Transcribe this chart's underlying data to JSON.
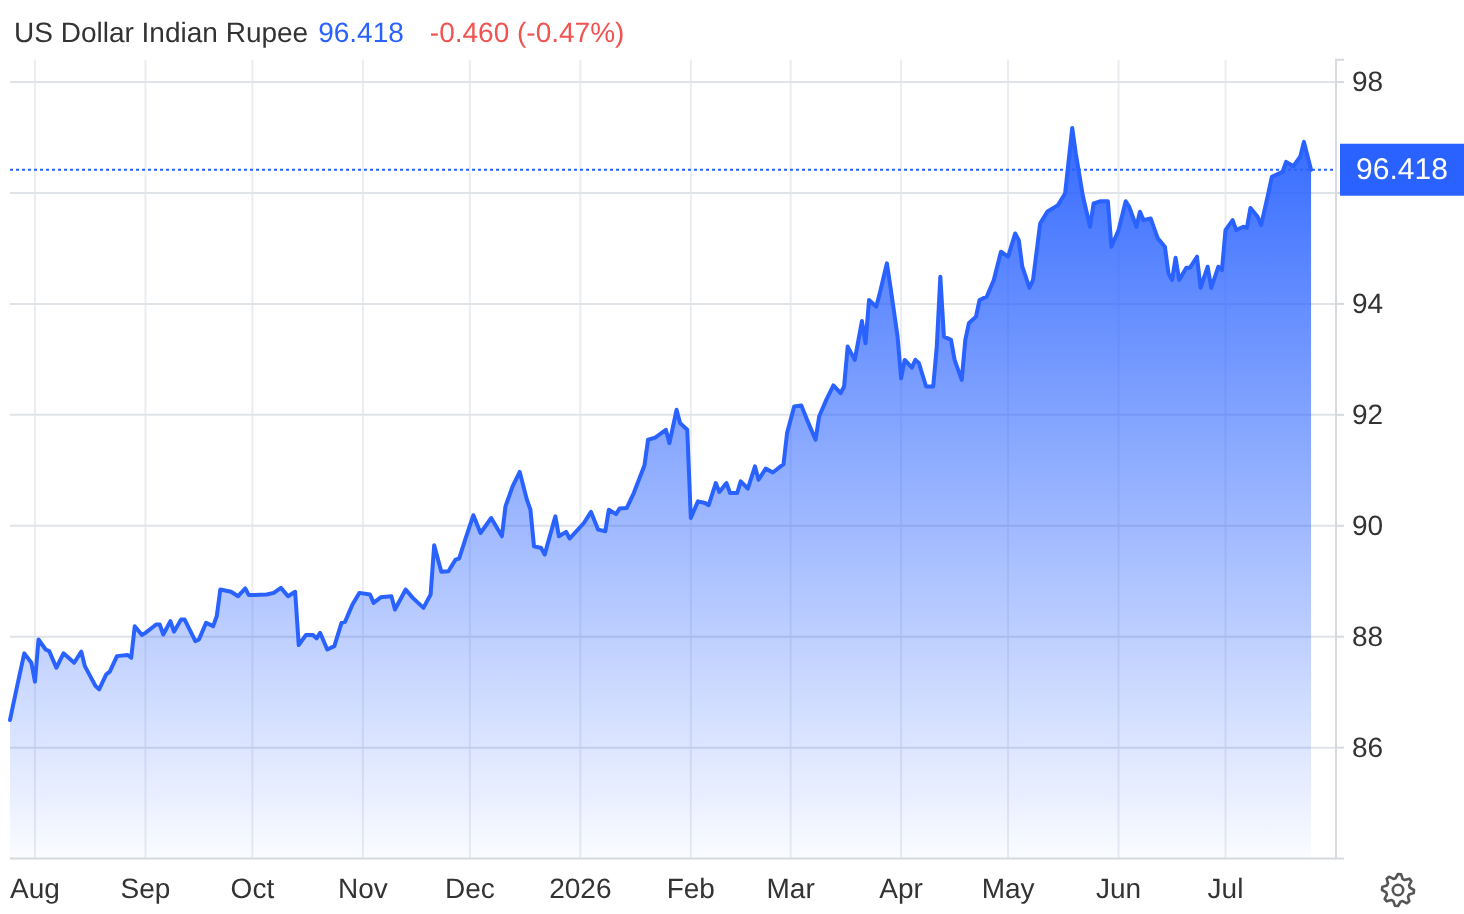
{
  "chart_data": {
    "type": "area",
    "title": "US Dollar Indian Rupee",
    "annotations": [
      "96.418",
      "-0.460 (-0.47%)"
    ],
    "x": [
      "2025-07-25",
      "2025-07-27",
      "2025-07-29",
      "2025-07-31",
      "2025-08-01",
      "2025-08-02",
      "2025-08-04",
      "2025-08-05",
      "2025-08-07",
      "2025-08-09",
      "2025-08-12",
      "2025-08-14",
      "2025-08-15",
      "2025-08-18",
      "2025-08-19",
      "2025-08-21",
      "2025-08-22",
      "2025-08-24",
      "2025-08-27",
      "2025-08-28",
      "2025-08-29",
      "2025-08-31",
      "2025-09-01",
      "2025-09-04",
      "2025-09-05",
      "2025-09-06",
      "2025-09-08",
      "2025-09-09",
      "2025-09-11",
      "2025-09-12",
      "2025-09-15",
      "2025-09-16",
      "2025-09-18",
      "2025-09-20",
      "2025-09-21",
      "2025-09-22",
      "2025-09-25",
      "2025-09-27",
      "2025-09-29",
      "2025-09-30",
      "2025-10-05",
      "2025-10-07",
      "2025-10-09",
      "2025-10-11",
      "2025-10-13",
      "2025-10-14",
      "2025-10-16",
      "2025-10-18",
      "2025-10-19",
      "2025-10-20",
      "2025-10-22",
      "2025-10-24",
      "2025-10-26",
      "2025-10-27",
      "2025-10-29",
      "2025-10-31",
      "2025-11-03",
      "2025-11-04",
      "2025-11-06",
      "2025-11-09",
      "2025-11-10",
      "2025-11-13",
      "2025-11-15",
      "2025-11-18",
      "2025-11-20",
      "2025-11-21",
      "2025-11-23",
      "2025-11-25",
      "2025-11-27",
      "2025-11-28",
      "2025-11-30",
      "2025-12-02",
      "2025-12-04",
      "2025-12-07",
      "2025-12-10",
      "2025-12-11",
      "2025-12-13",
      "2025-12-15",
      "2025-12-17",
      "2025-12-18",
      "2025-12-19",
      "2025-12-21",
      "2025-12-22",
      "2025-12-25",
      "2025-12-26",
      "2025-12-28",
      "2025-12-29",
      "2026-01-02",
      "2026-01-04",
      "2026-01-06",
      "2026-01-08",
      "2026-01-09",
      "2026-01-11",
      "2026-01-12",
      "2026-01-14",
      "2026-01-16",
      "2026-01-19",
      "2026-01-20",
      "2026-01-22",
      "2026-01-25",
      "2026-01-26",
      "2026-01-28",
      "2026-01-29",
      "2026-01-31",
      "2026-02-01",
      "2026-02-03",
      "2026-02-05",
      "2026-02-06",
      "2026-02-08",
      "2026-02-09",
      "2026-02-11",
      "2026-02-12",
      "2026-02-14",
      "2026-02-15",
      "2026-02-17",
      "2026-02-19",
      "2026-02-20",
      "2026-02-22",
      "2026-02-24",
      "2026-02-27",
      "2026-02-28",
      "2026-03-02",
      "2026-03-04",
      "2026-03-06",
      "2026-03-08",
      "2026-03-09",
      "2026-03-11",
      "2026-03-13",
      "2026-03-15",
      "2026-03-16",
      "2026-03-17",
      "2026-03-19",
      "2026-03-21",
      "2026-03-22",
      "2026-03-23",
      "2026-03-25",
      "2026-03-26",
      "2026-03-28",
      "2026-03-29",
      "2026-03-31",
      "2026-04-01",
      "2026-04-02",
      "2026-04-04",
      "2026-04-05",
      "2026-04-06",
      "2026-04-08",
      "2026-04-10",
      "2026-04-11",
      "2026-04-12",
      "2026-04-13",
      "2026-04-15",
      "2026-04-16",
      "2026-04-18",
      "2026-04-19",
      "2026-04-20",
      "2026-04-22",
      "2026-04-23",
      "2026-04-25",
      "2026-04-27",
      "2026-04-29",
      "2026-05-01",
      "2026-05-03",
      "2026-05-04",
      "2026-05-05",
      "2026-05-07",
      "2026-05-08",
      "2026-05-10",
      "2026-05-12",
      "2026-05-15",
      "2026-05-17",
      "2026-05-19",
      "2026-05-20",
      "2026-05-22",
      "2026-05-24",
      "2026-05-25",
      "2026-05-27",
      "2026-05-29",
      "2026-05-30",
      "2026-06-01",
      "2026-06-03",
      "2026-06-04",
      "2026-06-06",
      "2026-06-07",
      "2026-06-08",
      "2026-06-10",
      "2026-06-12",
      "2026-06-14",
      "2026-06-15",
      "2026-06-16",
      "2026-06-17",
      "2026-06-18",
      "2026-06-20",
      "2026-06-21",
      "2026-06-23",
      "2026-06-24",
      "2026-06-26",
      "2026-06-27",
      "2026-06-29",
      "2026-06-30",
      "2026-07-01",
      "2026-07-03",
      "2026-07-04",
      "2026-07-06",
      "2026-07-07",
      "2026-07-08",
      "2026-07-10",
      "2026-07-11",
      "2026-07-13",
      "2026-07-14",
      "2026-07-17",
      "2026-07-18",
      "2026-07-20",
      "2026-07-22",
      "2026-07-23",
      "2026-07-25"
    ],
    "values": [
      86.5,
      87.11,
      87.7,
      87.53,
      87.19,
      87.95,
      87.77,
      87.74,
      87.44,
      87.7,
      87.53,
      87.73,
      87.47,
      87.11,
      87.05,
      87.32,
      87.37,
      87.65,
      87.67,
      87.62,
      88.19,
      88.03,
      88.07,
      88.22,
      88.22,
      88.04,
      88.28,
      88.09,
      88.31,
      88.31,
      87.92,
      87.95,
      88.25,
      88.19,
      88.37,
      88.85,
      88.81,
      88.73,
      88.87,
      88.75,
      88.76,
      88.79,
      88.88,
      88.73,
      88.81,
      87.85,
      88.03,
      88.03,
      87.97,
      88.07,
      87.77,
      87.83,
      88.25,
      88.27,
      88.57,
      88.79,
      88.76,
      88.61,
      88.71,
      88.73,
      88.49,
      88.85,
      88.7,
      88.52,
      88.76,
      89.65,
      89.17,
      89.18,
      89.39,
      89.41,
      89.81,
      90.19,
      89.87,
      90.14,
      89.81,
      90.35,
      90.71,
      90.97,
      90.47,
      90.29,
      89.63,
      89.6,
      89.48,
      90.17,
      89.81,
      89.89,
      89.77,
      90.05,
      90.25,
      89.93,
      89.9,
      90.29,
      90.21,
      90.31,
      90.32,
      90.59,
      91.09,
      91.55,
      91.59,
      91.73,
      91.49,
      92.09,
      91.85,
      91.73,
      90.14,
      90.44,
      90.41,
      90.37,
      90.77,
      90.61,
      90.77,
      90.59,
      90.59,
      90.8,
      90.67,
      91.07,
      90.83,
      91.03,
      90.96,
      91.11,
      91.67,
      92.15,
      92.17,
      91.85,
      91.55,
      91.97,
      92.27,
      92.53,
      92.39,
      92.51,
      93.23,
      92.99,
      93.69,
      93.29,
      94.07,
      93.95,
      94.19,
      94.73,
      94.31,
      93.41,
      92.66,
      92.99,
      92.85,
      92.99,
      92.93,
      92.51,
      92.51,
      93.23,
      94.49,
      93.41,
      93.35,
      92.99,
      92.63,
      93.35,
      93.65,
      93.77,
      94.07,
      94.13,
      94.43,
      94.94,
      94.85,
      95.27,
      95.15,
      94.67,
      94.29,
      94.43,
      95.45,
      95.66,
      95.78,
      95.99,
      97.17,
      96.71,
      95.94,
      95.39,
      95.81,
      95.85,
      95.85,
      95.03,
      95.33,
      95.85,
      95.75,
      95.39,
      95.66,
      95.51,
      95.54,
      95.18,
      95.03,
      94.55,
      94.43,
      94.83,
      94.43,
      94.65,
      94.65,
      94.85,
      94.29,
      94.67,
      94.29,
      94.67,
      94.61,
      95.33,
      95.51,
      95.33,
      95.39,
      95.37,
      95.73,
      95.57,
      95.42,
      95.99,
      96.29,
      96.38,
      96.56,
      96.48,
      96.66,
      96.92,
      96.418
    ],
    "color": "#2962ff",
    "xlim": [
      "2025-07-25",
      "2026-08-01"
    ],
    "xticks": [
      {
        "value": "2025-08-01",
        "label": "Aug"
      },
      {
        "value": "2025-09-01",
        "label": "Sep"
      },
      {
        "value": "2025-10-01",
        "label": "Oct"
      },
      {
        "value": "2025-11-01",
        "label": "Nov"
      },
      {
        "value": "2025-12-01",
        "label": "Dec"
      },
      {
        "value": "2026-01-01",
        "label": "2026"
      },
      {
        "value": "2026-02-01",
        "label": "Feb"
      },
      {
        "value": "2026-03-01",
        "label": "Mar"
      },
      {
        "value": "2026-04-01",
        "label": "Apr"
      },
      {
        "value": "2026-05-01",
        "label": "May"
      },
      {
        "value": "2026-06-01",
        "label": "Jun"
      },
      {
        "value": "2026-07-01",
        "label": "Jul"
      }
    ],
    "ylim": [
      84,
      98.4
    ],
    "yticks": [
      86,
      88,
      90,
      92,
      94,
      {
        "value": 96,
        "label": null
      },
      98
    ],
    "ref_lines": [
      {
        "axis": "y",
        "value": 96.418,
        "label": "96.418",
        "color": "#2962ff",
        "line_style": "dotted"
      }
    ],
    "grid": true
  }
}
